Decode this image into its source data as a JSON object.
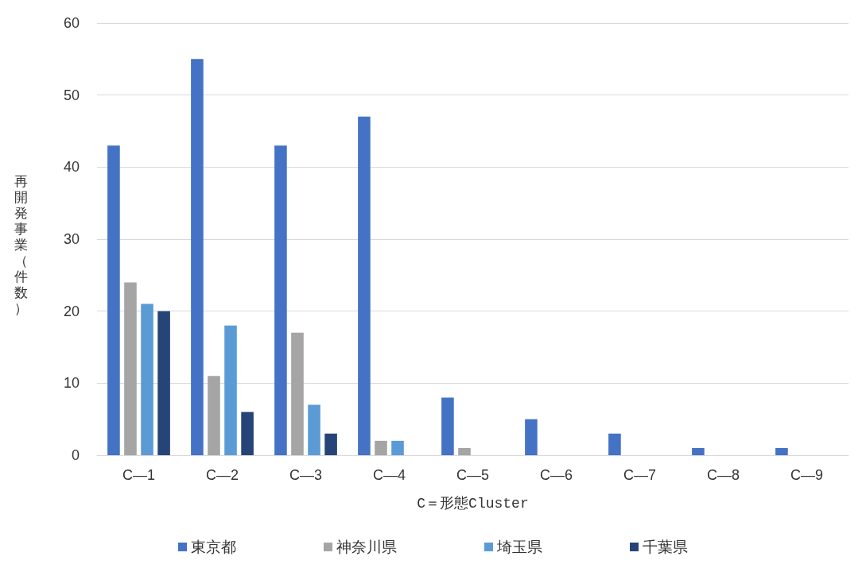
{
  "chart_data": {
    "type": "bar",
    "xlabel": "C＝形態Cluster",
    "ylabel": "再開発事業（件数）",
    "categories": [
      "C—1",
      "C—2",
      "C—3",
      "C—4",
      "C—5",
      "C—6",
      "C—7",
      "C—8",
      "C—9"
    ],
    "series": [
      {
        "name": "東京都",
        "color": "#4472c4",
        "values": [
          43,
          55,
          43,
          47,
          8,
          5,
          3,
          1,
          1
        ]
      },
      {
        "name": "神奈川県",
        "color": "#a5a5a5",
        "values": [
          24,
          11,
          17,
          2,
          1,
          0,
          0,
          0,
          0
        ]
      },
      {
        "name": "埼玉県",
        "color": "#5b9bd5",
        "values": [
          21,
          18,
          7,
          2,
          0,
          0,
          0,
          0,
          0
        ]
      },
      {
        "name": "千葉県",
        "color": "#264478",
        "values": [
          20,
          6,
          3,
          0,
          0,
          0,
          0,
          0,
          0
        ]
      }
    ],
    "ylim": [
      0,
      60
    ],
    "yticks": [
      0,
      10,
      20,
      30,
      40,
      50,
      60
    ],
    "grid": "y",
    "legend": "bottom"
  }
}
